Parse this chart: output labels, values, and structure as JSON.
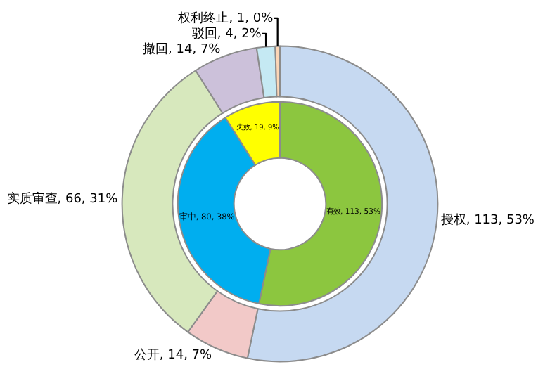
{
  "chart_data": [
    {
      "type": "donut",
      "categories": [
        "授权, 113, 53%",
        "公开, 14, 7%",
        "实质审查, 66, 31%",
        "撤回, 14, 7%",
        "驳回, 4, 2%",
        "权利终止, 1, 0%"
      ],
      "values": [
        113,
        14,
        66,
        14,
        4,
        1
      ],
      "colors": [
        "#c6d9f1",
        "#f2c9c8",
        "#d7e8bd",
        "#ccc1da",
        "#c5e9f3",
        "#fcd5b5"
      ]
    },
    {
      "type": "donut",
      "categories": [
        "有效, 113, 53%",
        "审中, 80, 38%",
        "失效, 19, 9%"
      ],
      "values": [
        113,
        80,
        19
      ],
      "colors": [
        "#8cc63f",
        "#00aeef",
        "#ffff00"
      ]
    }
  ]
}
